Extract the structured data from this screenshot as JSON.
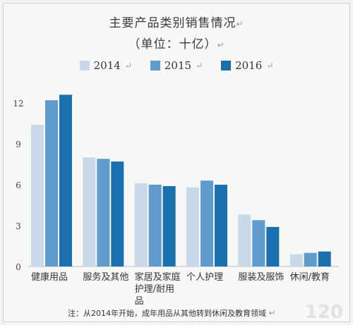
{
  "chart_data": {
    "type": "bar",
    "title": "主要产品类别销售情况",
    "subtitle": "（单位：十亿）",
    "categories": [
      "健康用品",
      "服务及其他",
      "家居及家庭护理/耐用品",
      "个人护理",
      "服装及服饰",
      "休闲/教育"
    ],
    "category_lines": [
      [
        "健康用品"
      ],
      [
        "服务及其他"
      ],
      [
        "家居及家庭",
        "护理/耐用",
        "品"
      ],
      [
        "个人护理"
      ],
      [
        "服装及服饰"
      ],
      [
        "休闲/教育"
      ]
    ],
    "series": [
      {
        "name": "2014",
        "color": "#c9d9ea",
        "values": [
          10.4,
          8.0,
          6.1,
          5.8,
          3.8,
          0.9
        ]
      },
      {
        "name": "2015",
        "color": "#5f9ccd",
        "values": [
          12.2,
          7.9,
          6.0,
          6.3,
          3.4,
          1.0
        ]
      },
      {
        "name": "2016",
        "color": "#1a6fae",
        "values": [
          12.6,
          7.7,
          5.9,
          6.0,
          2.9,
          1.1
        ]
      }
    ],
    "yticks": [
      0,
      3,
      6,
      9,
      12
    ],
    "ylim": [
      0,
      13.5
    ],
    "legend": "top",
    "grid": false,
    "note": "注：从2014年开始，成年用品从其他转到休闲及教育领域"
  },
  "watermark": "120"
}
